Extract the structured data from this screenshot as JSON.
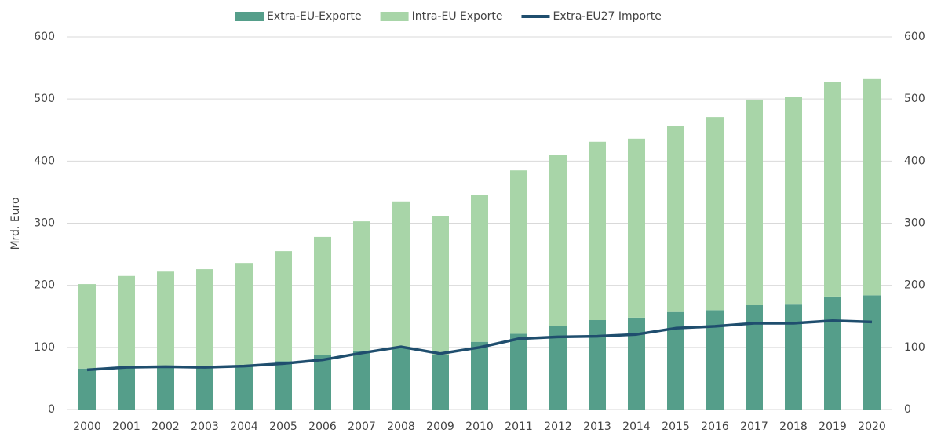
{
  "chart_data": {
    "type": "bar",
    "stacked": true,
    "ylabel": "Mrd. Euro",
    "categories": [
      "2000",
      "2001",
      "2002",
      "2003",
      "2004",
      "2005",
      "2006",
      "2007",
      "2008",
      "2009",
      "2010",
      "2011",
      "2012",
      "2013",
      "2014",
      "2015",
      "2016",
      "2017",
      "2018",
      "2019",
      "2020"
    ],
    "series": [
      {
        "name": "Extra-EU-Exporte",
        "type": "bar",
        "color": "#559e8a",
        "values": [
          66,
          69,
          71,
          68,
          71,
          78,
          88,
          95,
          101,
          88,
          109,
          122,
          135,
          144,
          148,
          157,
          160,
          168,
          169,
          182,
          184
        ]
      },
      {
        "name": "Intra-EU Exporte",
        "type": "bar",
        "color": "#a8d5a8",
        "values": [
          136,
          146,
          151,
          158,
          165,
          177,
          190,
          208,
          234,
          224,
          237,
          263,
          275,
          287,
          288,
          299,
          311,
          331,
          335,
          346,
          348
        ]
      },
      {
        "name": "Extra-EU27 Importe",
        "type": "line",
        "axis": "y2",
        "color": "#1f4e6e",
        "values": [
          64,
          68,
          69,
          68,
          70,
          74,
          80,
          91,
          101,
          90,
          100,
          114,
          117,
          118,
          121,
          131,
          134,
          139,
          139,
          143,
          141
        ]
      }
    ],
    "ylim": [
      0,
      600
    ],
    "yticks": [
      0,
      100,
      200,
      300,
      400,
      500,
      600
    ],
    "y2lim": [
      0,
      600
    ],
    "y2ticks": [
      0,
      100,
      200,
      300,
      400,
      500,
      600
    ],
    "grid": true,
    "legend": "top"
  }
}
